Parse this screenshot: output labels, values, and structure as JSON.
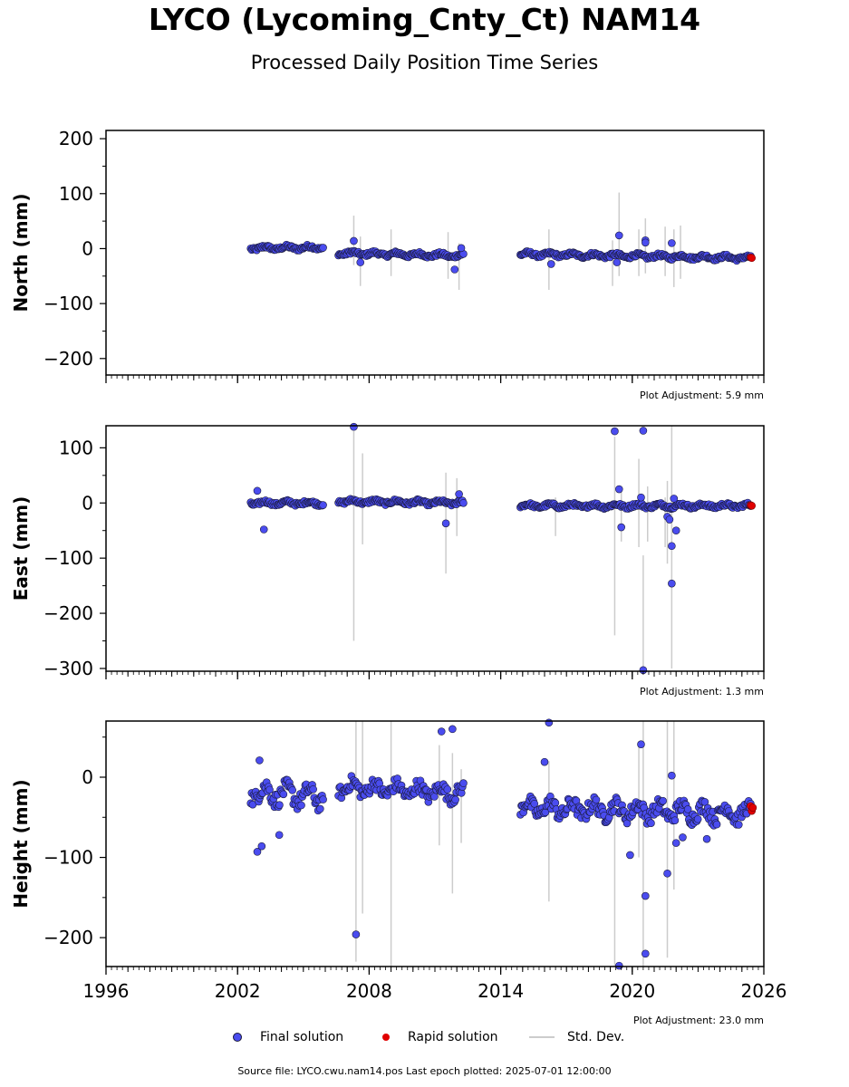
{
  "header": {
    "title": "LYCO (Lycoming_Cnty_Ct) NAM14",
    "subtitle": "Processed Daily Position Time Series"
  },
  "legend": {
    "final": "Final solution",
    "rapid": "Rapid solution",
    "std": "Std. Dev."
  },
  "footer": "Source file: LYCO.cwu.nam14.pos  Last epoch plotted: 2025-07-01 12:00:00",
  "colors": {
    "final_fill": "#4a4cef",
    "final_edge": "#1a1a3a",
    "rapid_fill": "#e00000",
    "std_line": "#cccccc"
  },
  "chart_data": {
    "type": "scatter",
    "x_label": "",
    "x_range": [
      1996,
      2026
    ],
    "x_ticks": [
      1996,
      2002,
      2008,
      2014,
      2020,
      2026
    ],
    "panels": [
      {
        "name": "north",
        "ylabel": "North (mm)",
        "ylim": [
          -230,
          215
        ],
        "yticks": [
          -200,
          -100,
          0,
          100,
          200
        ],
        "adjustment": "Plot Adjustment: 5.9 mm",
        "segments": [
          {
            "start": 2002.6,
            "end": 2005.9,
            "level_start": 1,
            "level_end": 2,
            "noise": 3
          },
          {
            "start": 2006.6,
            "end": 2012.3,
            "level_start": -8,
            "level_end": -13,
            "noise": 3
          },
          {
            "start": 2014.9,
            "end": 2025.4,
            "level_start": -10,
            "level_end": -17,
            "noise": 3
          }
        ],
        "outliers": [
          [
            2007.3,
            14
          ],
          [
            2007.6,
            -25
          ],
          [
            2011.9,
            -38
          ],
          [
            2012.2,
            1
          ],
          [
            2016.3,
            -28
          ],
          [
            2019.3,
            -25
          ],
          [
            2019.4,
            24
          ],
          [
            2020.6,
            15
          ],
          [
            2020.6,
            11
          ],
          [
            2021.8,
            10
          ]
        ],
        "errorbars": [
          [
            2007.3,
            -30,
            60
          ],
          [
            2007.6,
            -68,
            22
          ],
          [
            2009.0,
            -50,
            35
          ],
          [
            2011.6,
            -55,
            30
          ],
          [
            2012.1,
            -75,
            10
          ],
          [
            2016.2,
            -75,
            35
          ],
          [
            2019.1,
            -68,
            15
          ],
          [
            2019.4,
            -50,
            102
          ],
          [
            2020.3,
            -50,
            35
          ],
          [
            2020.6,
            -45,
            55
          ],
          [
            2021.5,
            -50,
            40
          ],
          [
            2021.9,
            -70,
            35
          ],
          [
            2022.2,
            -55,
            42
          ]
        ],
        "rapid": [
          [
            2025.4,
            -16
          ],
          [
            2025.45,
            -17
          ]
        ]
      },
      {
        "name": "east",
        "ylabel": "East (mm)",
        "ylim": [
          -305,
          140
        ],
        "yticks": [
          -300,
          -200,
          -100,
          0,
          100
        ],
        "adjustment": "Plot Adjustment: 1.3 mm",
        "segments": [
          {
            "start": 2002.6,
            "end": 2005.9,
            "level_start": 0,
            "level_end": 0,
            "noise": 3
          },
          {
            "start": 2006.6,
            "end": 2012.3,
            "level_start": 3,
            "level_end": 0,
            "noise": 3
          },
          {
            "start": 2014.9,
            "end": 2025.4,
            "level_start": -5,
            "level_end": -5,
            "noise": 3
          }
        ],
        "outliers": [
          [
            2002.9,
            22
          ],
          [
            2003.2,
            -48
          ],
          [
            2007.3,
            138
          ],
          [
            2011.5,
            -37
          ],
          [
            2012.1,
            16
          ],
          [
            2019.2,
            130
          ],
          [
            2019.4,
            25
          ],
          [
            2019.5,
            -44
          ],
          [
            2020.5,
            131
          ],
          [
            2020.4,
            10
          ],
          [
            2020.5,
            -303
          ],
          [
            2021.6,
            -25
          ],
          [
            2021.7,
            -30
          ],
          [
            2021.8,
            -78
          ],
          [
            2021.9,
            8
          ],
          [
            2021.8,
            -146
          ],
          [
            2022.0,
            -50
          ]
        ],
        "errorbars": [
          [
            2007.3,
            -250,
            130
          ],
          [
            2007.7,
            -75,
            90
          ],
          [
            2011.5,
            -128,
            55
          ],
          [
            2012.0,
            -60,
            45
          ],
          [
            2016.5,
            -60,
            10
          ],
          [
            2019.2,
            -240,
            120
          ],
          [
            2019.5,
            -70,
            30
          ],
          [
            2020.3,
            -80,
            80
          ],
          [
            2020.5,
            -300,
            -95
          ],
          [
            2020.7,
            -70,
            30
          ],
          [
            2021.5,
            -80,
            10
          ],
          [
            2021.8,
            -300,
            140
          ],
          [
            2021.6,
            -110,
            40
          ]
        ],
        "rapid": [
          [
            2025.4,
            -4
          ],
          [
            2025.45,
            -5
          ]
        ]
      },
      {
        "name": "height",
        "ylabel": "Height (mm)",
        "ylim": [
          -236,
          70
        ],
        "yticks": [
          -200,
          -100,
          0
        ],
        "adjustment": "Plot Adjustment: 23.0 mm",
        "xlabel": "",
        "segments": [
          {
            "start": 2002.6,
            "end": 2005.9,
            "level_start": -18,
            "level_end": -25,
            "noise": 10
          },
          {
            "start": 2006.6,
            "end": 2012.3,
            "level_start": -12,
            "level_end": -20,
            "noise": 8
          },
          {
            "start": 2014.9,
            "end": 2025.4,
            "level_start": -38,
            "level_end": -45,
            "noise": 9
          }
        ],
        "outliers": [
          [
            2002.9,
            -93
          ],
          [
            2003.1,
            -86
          ],
          [
            2003.9,
            -72
          ],
          [
            2003.0,
            21
          ],
          [
            2007.4,
            -196
          ],
          [
            2011.3,
            57
          ],
          [
            2011.8,
            60
          ],
          [
            2016.0,
            19
          ],
          [
            2016.2,
            68
          ],
          [
            2019.4,
            -235
          ],
          [
            2019.9,
            -97
          ],
          [
            2020.4,
            41
          ],
          [
            2020.6,
            -148
          ],
          [
            2020.6,
            -220
          ],
          [
            2021.6,
            -120
          ],
          [
            2021.8,
            2
          ],
          [
            2022.0,
            -82
          ],
          [
            2022.3,
            -75
          ],
          [
            2023.4,
            -77
          ]
        ],
        "errorbars": [
          [
            2007.4,
            -230,
            70
          ],
          [
            2007.7,
            -170,
            70
          ],
          [
            2009.0,
            -236,
            70
          ],
          [
            2011.2,
            -85,
            40
          ],
          [
            2011.8,
            -145,
            30
          ],
          [
            2012.2,
            -82,
            10
          ],
          [
            2016.2,
            -155,
            20
          ],
          [
            2019.2,
            -236,
            -30
          ],
          [
            2020.3,
            -100,
            40
          ],
          [
            2020.5,
            -236,
            70
          ],
          [
            2021.6,
            -225,
            70
          ],
          [
            2021.9,
            -140,
            70
          ]
        ],
        "rapid": [
          [
            2025.4,
            -36
          ],
          [
            2025.45,
            -42
          ],
          [
            2025.5,
            -38
          ]
        ]
      }
    ]
  }
}
